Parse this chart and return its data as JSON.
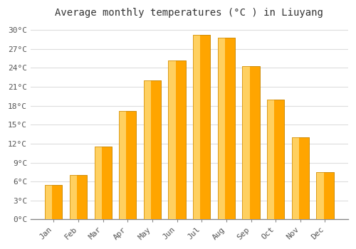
{
  "title": "Average monthly temperatures (°C ) in Liuyang",
  "months": [
    "Jan",
    "Feb",
    "Mar",
    "Apr",
    "May",
    "Jun",
    "Jul",
    "Aug",
    "Sep",
    "Oct",
    "Nov",
    "Dec"
  ],
  "temperatures": [
    5.5,
    7.0,
    11.5,
    17.2,
    22.0,
    25.2,
    29.2,
    28.8,
    24.3,
    19.0,
    13.0,
    7.5
  ],
  "bar_color_main": "#FFA500",
  "bar_color_light": "#FFD060",
  "bar_color_dark": "#E08000",
  "bar_edge_color": "#CC8800",
  "ylim": [
    0,
    31
  ],
  "yticks": [
    0,
    3,
    6,
    9,
    12,
    15,
    18,
    21,
    24,
    27,
    30
  ],
  "ytick_labels": [
    "0°C",
    "3°C",
    "6°C",
    "9°C",
    "12°C",
    "15°C",
    "18°C",
    "21°C",
    "24°C",
    "27°C",
    "30°C"
  ],
  "background_color": "#FFFFFF",
  "plot_bg_color": "#FFFFFF",
  "grid_color": "#DDDDDD",
  "title_fontsize": 10,
  "tick_fontsize": 8,
  "bar_width": 0.7
}
